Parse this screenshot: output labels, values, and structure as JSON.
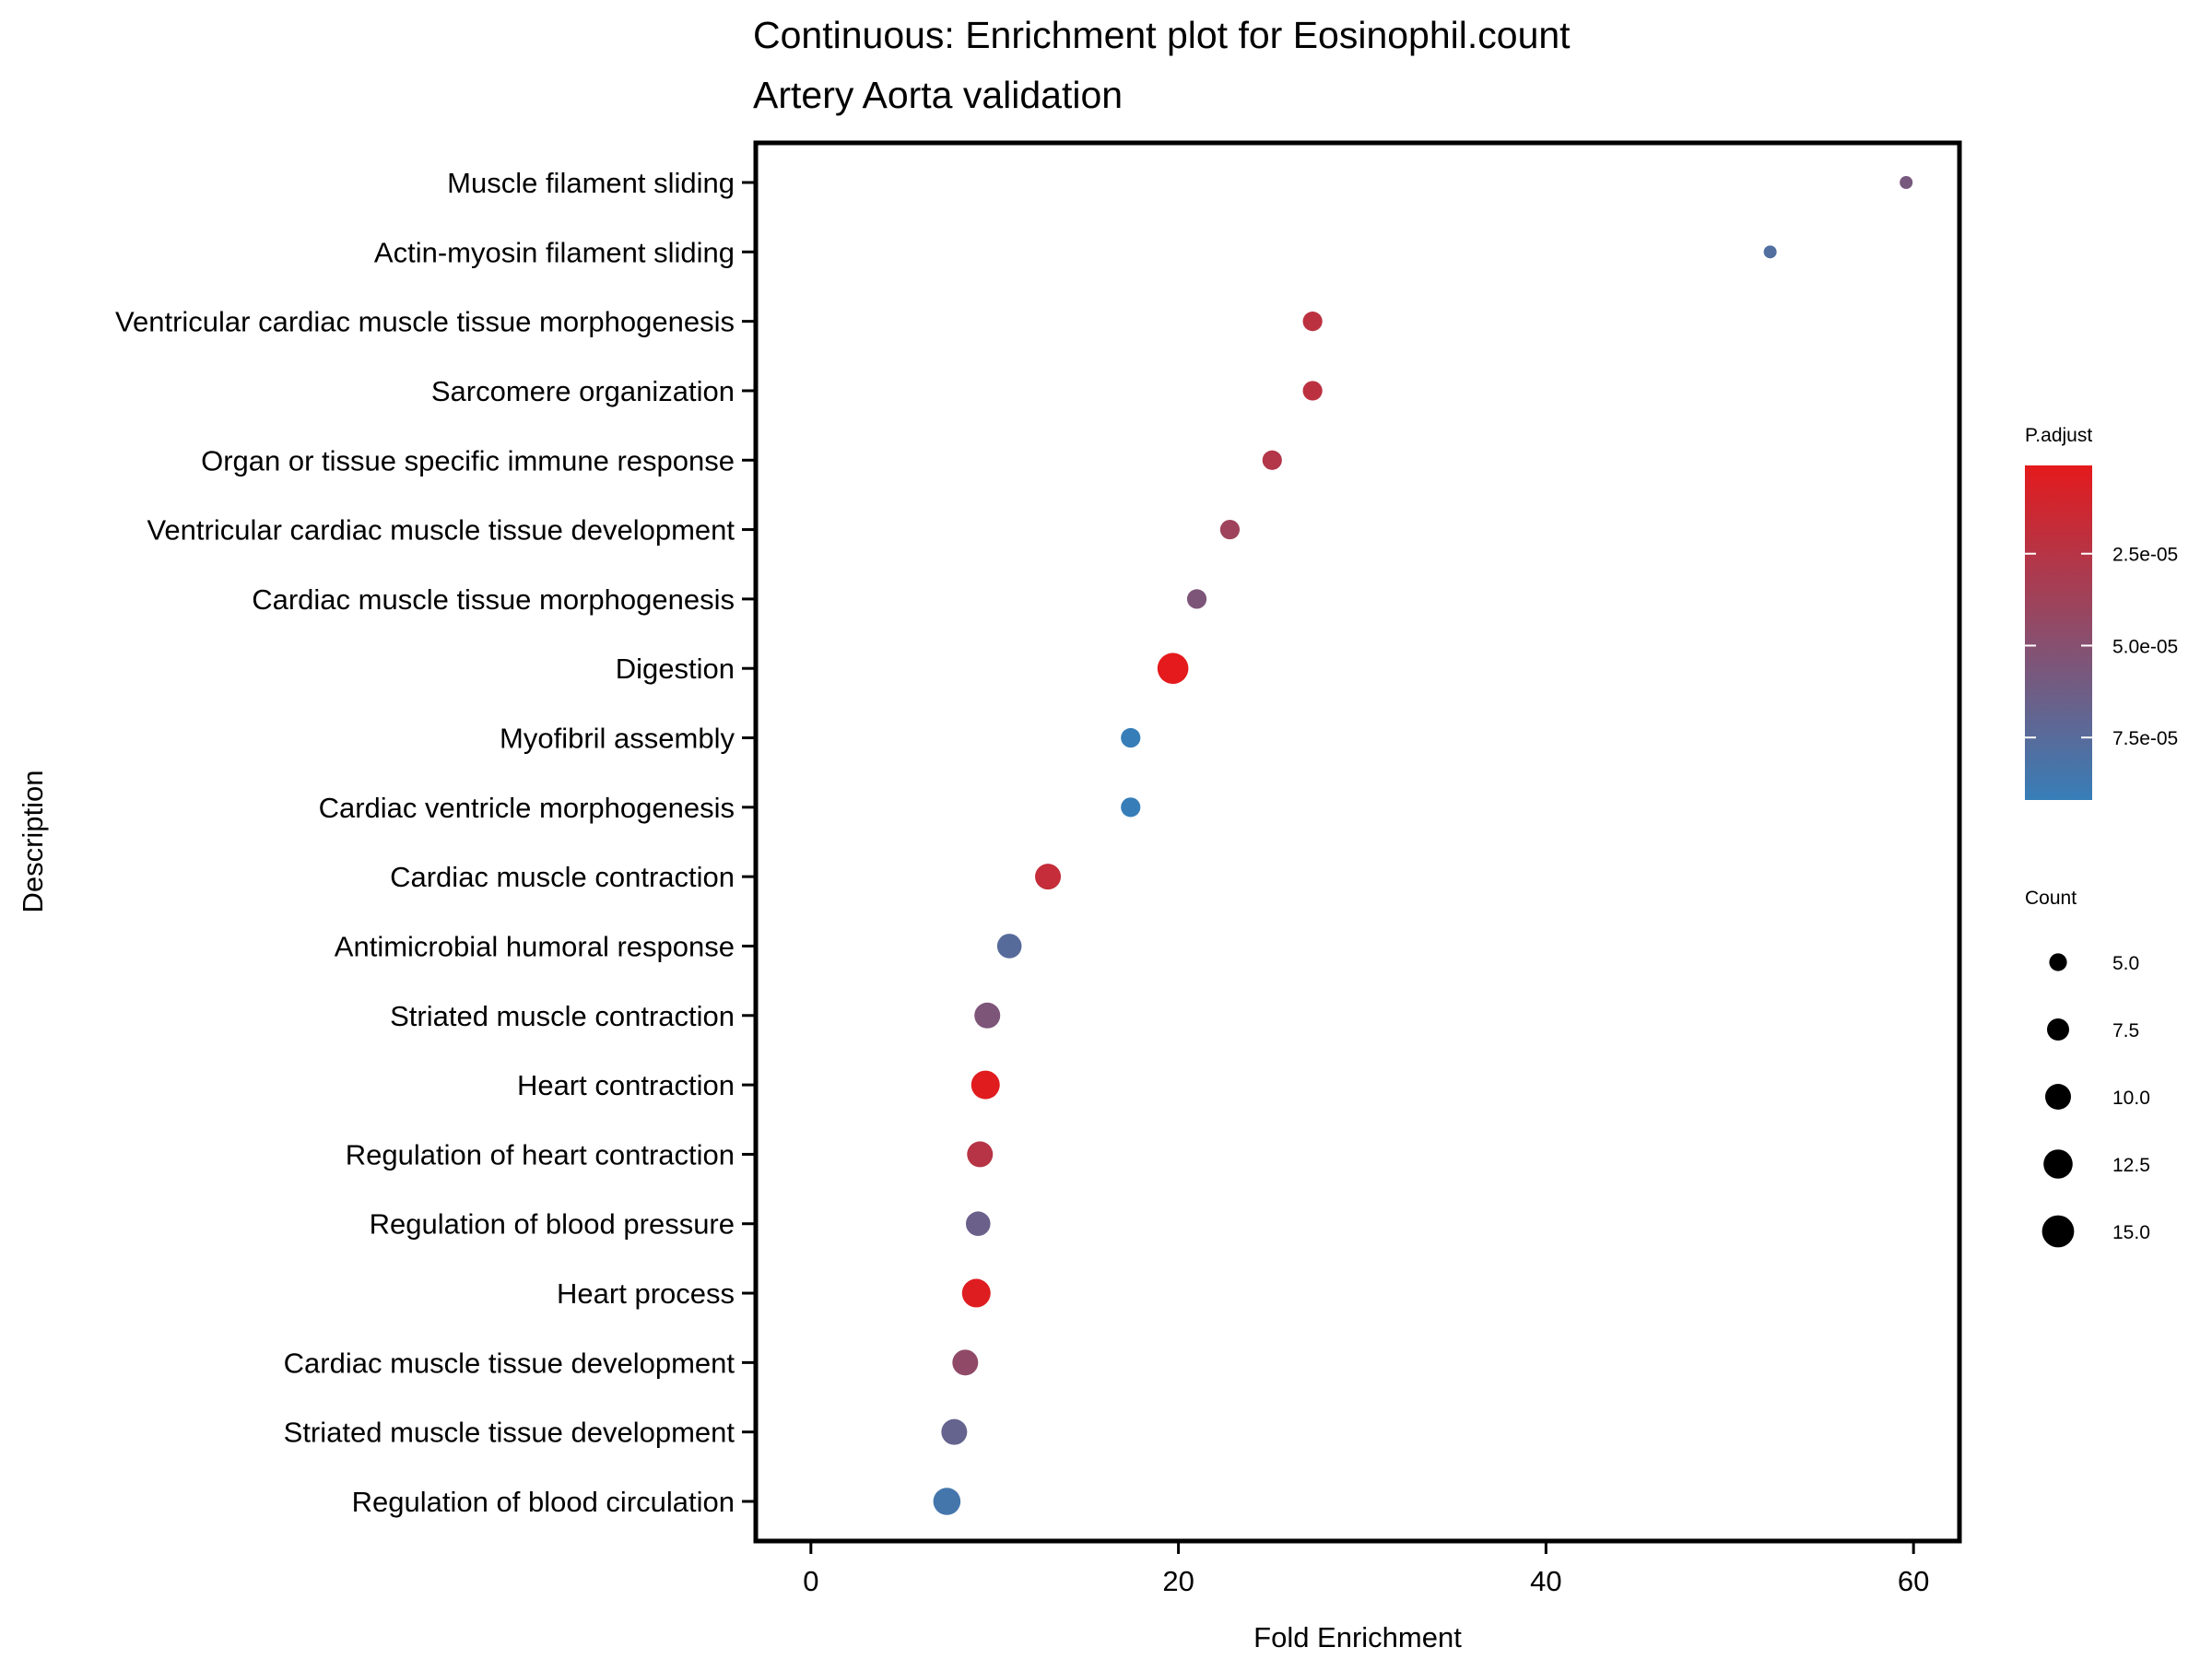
{
  "chart_data": {
    "type": "scatter",
    "title": "Continuous: Enrichment plot for Eosinophil.count",
    "subtitle": "Artery Aorta validation",
    "xlabel": "Fold Enrichment",
    "ylabel": "Description",
    "xlim": [
      -3,
      62.5
    ],
    "xticks": [
      0,
      20,
      40,
      60
    ],
    "grid": false,
    "legend_position": "right",
    "color_scale": {
      "title": "P.adjust",
      "low_color": "#e41a1c",
      "high_color": "#377eb8",
      "range": [
        1e-06,
        9.2e-05
      ],
      "ticks": [
        2.5e-05,
        5e-05,
        7.5e-05
      ],
      "tick_labels": [
        "2.5e-05",
        "5.0e-05",
        "7.5e-05"
      ]
    },
    "size_scale": {
      "title": "Count",
      "range": [
        3,
        16
      ],
      "ticks": [
        5.0,
        7.5,
        10.0,
        12.5,
        15.0
      ],
      "tick_labels": [
        "5.0",
        "7.5",
        "10.0",
        "12.5",
        "15.0"
      ]
    },
    "points": [
      {
        "description": "Muscle filament sliding",
        "fold_enrichment": 59.6,
        "count": 3,
        "p_adjust": 5.8e-05
      },
      {
        "description": "Actin-myosin filament sliding",
        "fold_enrichment": 52.2,
        "count": 3,
        "p_adjust": 7.8e-05
      },
      {
        "description": "Ventricular cardiac muscle tissue morphogenesis",
        "fold_enrichment": 27.3,
        "count": 6,
        "p_adjust": 2.2e-05
      },
      {
        "description": "Sarcomere organization",
        "fold_enrichment": 27.3,
        "count": 6,
        "p_adjust": 2.2e-05
      },
      {
        "description": "Organ or tissue specific immune response",
        "fold_enrichment": 25.1,
        "count": 6,
        "p_adjust": 2.7e-05
      },
      {
        "description": "Ventricular cardiac muscle tissue development",
        "fold_enrichment": 22.8,
        "count": 6,
        "p_adjust": 3.8e-05
      },
      {
        "description": "Cardiac muscle tissue morphogenesis",
        "fold_enrichment": 21.0,
        "count": 6,
        "p_adjust": 5.5e-05
      },
      {
        "description": "Digestion",
        "fold_enrichment": 19.7,
        "count": 14,
        "p_adjust": 1e-06
      },
      {
        "description": "Myofibril assembly",
        "fold_enrichment": 17.4,
        "count": 6,
        "p_adjust": 9.2e-05
      },
      {
        "description": "Cardiac ventricle morphogenesis",
        "fold_enrichment": 17.4,
        "count": 6,
        "p_adjust": 9.2e-05
      },
      {
        "description": "Cardiac muscle contraction",
        "fold_enrichment": 12.9,
        "count": 10,
        "p_adjust": 1.8e-05
      },
      {
        "description": "Antimicrobial humoral response",
        "fold_enrichment": 10.8,
        "count": 9,
        "p_adjust": 7.5e-05
      },
      {
        "description": "Striated muscle contraction",
        "fold_enrichment": 9.6,
        "count": 10,
        "p_adjust": 5.5e-05
      },
      {
        "description": "Heart contraction",
        "fold_enrichment": 9.5,
        "count": 12,
        "p_adjust": 3e-06
      },
      {
        "description": "Regulation of heart contraction",
        "fold_enrichment": 9.2,
        "count": 10,
        "p_adjust": 2.5e-05
      },
      {
        "description": "Regulation of blood pressure",
        "fold_enrichment": 9.1,
        "count": 9,
        "p_adjust": 6.5e-05
      },
      {
        "description": "Heart process",
        "fold_enrichment": 9.0,
        "count": 12,
        "p_adjust": 4e-06
      },
      {
        "description": "Cardiac muscle tissue development",
        "fold_enrichment": 8.4,
        "count": 10,
        "p_adjust": 4.5e-05
      },
      {
        "description": "Striated muscle tissue development",
        "fold_enrichment": 7.8,
        "count": 10,
        "p_adjust": 6.8e-05
      },
      {
        "description": "Regulation of blood circulation",
        "fold_enrichment": 7.4,
        "count": 11,
        "p_adjust": 8.5e-05
      }
    ]
  }
}
